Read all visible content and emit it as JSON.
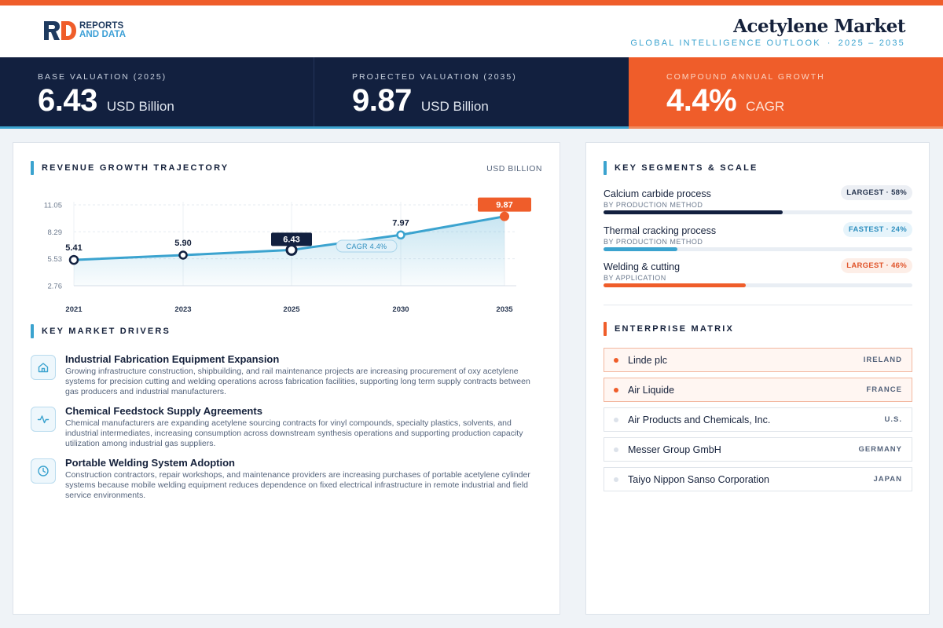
{
  "brand": {
    "line1": "REPORTS",
    "line2": "AND DATA"
  },
  "header": {
    "title": "Acetylene Market",
    "subtitle_left": "GLOBAL INTELLIGENCE OUTLOOK",
    "subtitle_sep": "·",
    "subtitle_right": "2025 – 2035"
  },
  "kpis": [
    {
      "label": "BASE VALUATION (2025)",
      "value": "6.43",
      "unit": "USD Billion"
    },
    {
      "label": "PROJECTED VALUATION (2035)",
      "value": "9.87",
      "unit": "USD Billion"
    },
    {
      "label": "COMPOUND ANNUAL GROWTH",
      "value": "4.4%",
      "unit": "CAGR"
    }
  ],
  "revenue_section": {
    "title": "REVENUE GROWTH TRAJECTORY",
    "unit": "USD BILLION"
  },
  "chart_data": {
    "type": "area",
    "title": "",
    "x": [
      "2021",
      "2023",
      "2025",
      "2030",
      "2035"
    ],
    "series": [
      {
        "values": [
          5.41,
          5.9,
          6.43,
          7.97,
          9.87
        ]
      }
    ],
    "data_labels": [
      "5.41",
      "5.90",
      "6.43",
      "7.97",
      "9.87"
    ],
    "y_ticks": [
      "11.05",
      "8.29",
      "5.53",
      "2.76"
    ],
    "ylim": [
      2.76,
      11.05
    ],
    "grid": true,
    "annotation": "CAGR 4.4%",
    "highlight_points": [
      "2025",
      "2035"
    ],
    "colors": {
      "line": "#3ba3cf",
      "highlight": "#12203f",
      "final": "#ef5d2a"
    }
  },
  "drivers_section": {
    "title": "KEY MARKET DRIVERS",
    "items": [
      {
        "icon": "home-icon",
        "title": "Industrial Fabrication Equipment Expansion",
        "text": "Growing infrastructure construction, shipbuilding, and rail maintenance projects are increasing procurement of oxy acetylene systems for precision cutting and welding operations across fabrication facilities, supporting long term supply contracts between gas producers and industrial manufacturers."
      },
      {
        "icon": "activity-icon",
        "title": "Chemical Feedstock Supply Agreements",
        "text": "Chemical manufacturers are expanding acetylene sourcing contracts for vinyl compounds, specialty plastics, solvents, and industrial intermediates, increasing consumption across downstream synthesis operations and supporting production capacity utilization among industrial gas suppliers."
      },
      {
        "icon": "clock-icon",
        "title": "Portable Welding System Adoption",
        "text": "Construction contractors, repair workshops, and maintenance providers are increasing purchases of portable acetylene cylinder systems because mobile welding equipment reduces dependence on fixed electrical infrastructure in remote industrial and field service environments."
      }
    ]
  },
  "segments_section": {
    "title": "KEY SEGMENTS & SCALE",
    "items": [
      {
        "name": "Calcium carbide process",
        "category": "BY PRODUCTION METHOD",
        "badge": "LARGEST · 58%",
        "share": 0.58,
        "color": "#12203f",
        "badge_bg": "#eceff4",
        "badge_fg": "#2a3852"
      },
      {
        "name": "Thermal cracking process",
        "category": "BY PRODUCTION METHOD",
        "badge": "FASTEST · 24%",
        "share": 0.24,
        "color": "#3ba3cf",
        "badge_bg": "#e6f4fb",
        "badge_fg": "#2f8fbf"
      },
      {
        "name": "Welding & cutting",
        "category": "BY APPLICATION",
        "badge": "LARGEST · 46%",
        "share": 0.46,
        "color": "#ef5d2a",
        "badge_bg": "#fdeee7",
        "badge_fg": "#e0542a"
      }
    ]
  },
  "enterprise_section": {
    "title": "ENTERPRISE MATRIX",
    "items": [
      {
        "name": "Linde plc",
        "country": "IRELAND",
        "highlight": true
      },
      {
        "name": "Air Liquide",
        "country": "FRANCE",
        "highlight": true
      },
      {
        "name": "Air Products and Chemicals, Inc.",
        "country": "U.S.",
        "highlight": false
      },
      {
        "name": "Messer Group GmbH",
        "country": "GERMANY",
        "highlight": false
      },
      {
        "name": "Taiyo Nippon Sanso Corporation",
        "country": "JAPAN",
        "highlight": false
      }
    ]
  }
}
